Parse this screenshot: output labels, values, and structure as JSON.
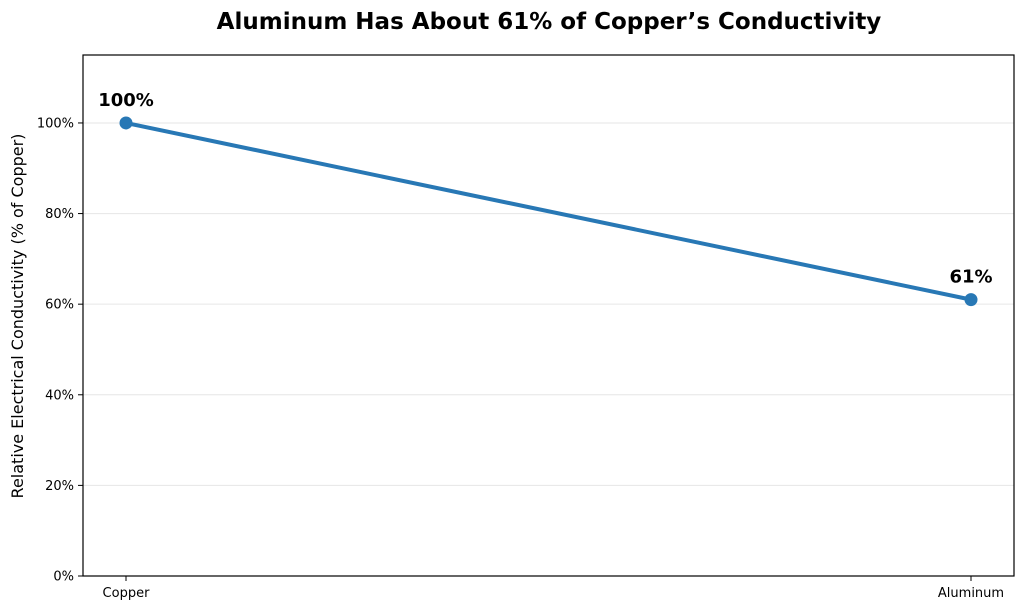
{
  "chart_data": {
    "type": "line",
    "title": "Aluminum Has About 61% of Copper’s Conductivity",
    "xlabel": "",
    "ylabel": "Relative Electrical Conductivity (% of Copper)",
    "categories": [
      "Copper",
      "Aluminum"
    ],
    "series": [
      {
        "values": [
          100,
          61
        ],
        "data_labels": [
          "100%",
          "61%"
        ],
        "color": "#2878b5"
      }
    ],
    "ylim": [
      0,
      115
    ],
    "yticks": [
      0,
      20,
      40,
      60,
      80,
      100
    ],
    "ytick_labels": [
      "0%",
      "20%",
      "40%",
      "60%",
      "80%",
      "100%"
    ],
    "grid": "horizontal",
    "legend": "none"
  }
}
